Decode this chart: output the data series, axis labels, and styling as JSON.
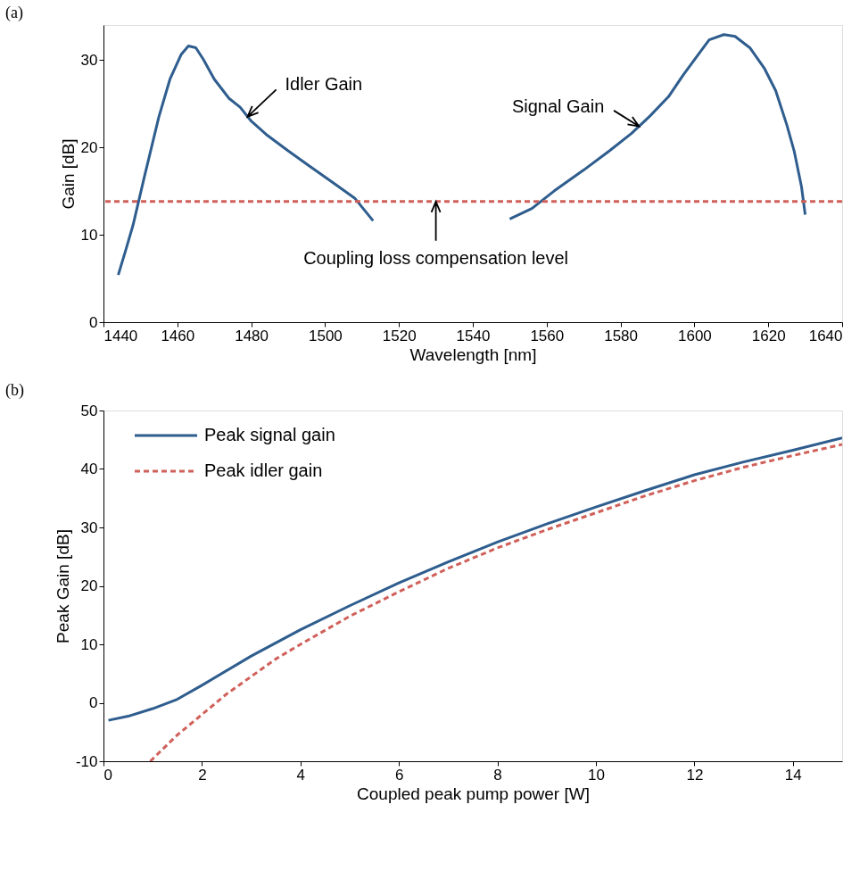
{
  "chart_data": [
    {
      "type": "line",
      "xlabel": "Wavelength [nm]",
      "ylabel": "Gain [dB]",
      "xlim": [
        1440,
        1640
      ],
      "xticks": [
        1440,
        1460,
        1480,
        1500,
        1520,
        1540,
        1560,
        1580,
        1600,
        1620,
        1640
      ],
      "ylim": [
        0,
        34
      ],
      "yticks": [
        0,
        10,
        20,
        30
      ],
      "grid": false,
      "legend": false,
      "line_style": "solid",
      "series": [
        {
          "color": "#2e5d8e",
          "x": [
            1444,
            1446,
            1448,
            1451,
            1455,
            1458,
            1461,
            1463,
            1465,
            1467,
            1470,
            1474,
            1477,
            1480,
            1484,
            1490,
            1496,
            1502,
            1508,
            1513
          ],
          "values": [
            5.4,
            8.2,
            11.1,
            16.5,
            23.5,
            27.8,
            30.6,
            31.6,
            31.4,
            30.1,
            27.8,
            25.6,
            24.6,
            23.0,
            21.5,
            19.6,
            17.8,
            16.0,
            14.2,
            11.6
          ]
        },
        {
          "color": "#2e5d8e",
          "x": [
            1550,
            1556,
            1562,
            1570,
            1577,
            1583,
            1588,
            1593,
            1597,
            1601,
            1604,
            1608,
            1611,
            1615,
            1619,
            1622,
            1625,
            1627,
            1629,
            1630
          ],
          "values": [
            11.8,
            13.0,
            15.0,
            17.4,
            19.6,
            21.6,
            23.6,
            25.8,
            28.3,
            30.6,
            32.3,
            32.9,
            32.7,
            31.4,
            29.0,
            26.5,
            22.6,
            19.6,
            15.5,
            12.3
          ]
        }
      ],
      "ref_lines": [
        {
          "axis": "y",
          "value": 13.8,
          "color": "#d0605a",
          "line_style": "dashed"
        }
      ],
      "annotations": [
        "(a)",
        {
          "text": "Idler Gain",
          "x": 1479,
          "y": 23.5
        },
        {
          "text": "Signal Gain",
          "x": 1585,
          "y": 22.4
        },
        {
          "text": "Coupling loss compensation level",
          "x": 1530,
          "y": 13.8
        }
      ]
    },
    {
      "type": "line",
      "xlabel": "Coupled peak pump power [W]",
      "ylabel": "Peak Gain [dB]",
      "xlim": [
        0,
        15
      ],
      "xticks": [
        0,
        2,
        4,
        6,
        8,
        10,
        12,
        14
      ],
      "ylim": [
        -10,
        50
      ],
      "yticks": [
        -10,
        0,
        10,
        20,
        30,
        40,
        50
      ],
      "grid": false,
      "legend": "top left",
      "series": [
        {
          "name": "Peak signal gain",
          "color": "#2e5d8e",
          "line_style": "solid",
          "x": [
            0.1,
            0.5,
            1,
            1.5,
            2,
            3,
            4,
            5,
            6,
            7,
            8,
            9,
            10,
            11,
            12,
            13,
            14,
            15
          ],
          "values": [
            -3.0,
            -2.3,
            -1.0,
            0.6,
            3.0,
            8.0,
            12.5,
            16.6,
            20.5,
            24.1,
            27.5,
            30.6,
            33.5,
            36.3,
            39.0,
            41.2,
            43.2,
            45.3
          ]
        },
        {
          "name": "Peak idler gain",
          "color": "#d0605a",
          "line_style": "dashed",
          "x": [
            0.95,
            1.5,
            2,
            2.5,
            3,
            3.5,
            4,
            5,
            6,
            7,
            8,
            9,
            10,
            11,
            12,
            13,
            14,
            15
          ],
          "values": [
            -10.0,
            -5.5,
            -2.0,
            1.5,
            4.5,
            7.5,
            10.0,
            14.8,
            19.0,
            23.0,
            26.5,
            29.6,
            32.5,
            35.4,
            38.0,
            40.3,
            42.3,
            44.2
          ]
        }
      ],
      "annotations": [
        "(b)"
      ]
    }
  ]
}
